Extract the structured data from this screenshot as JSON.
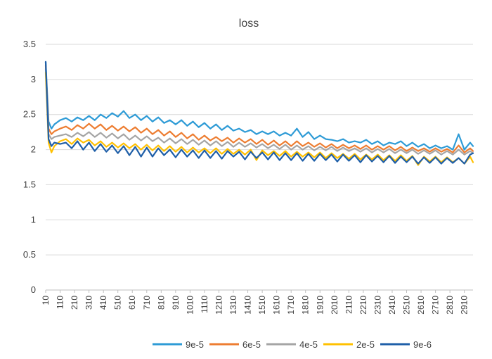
{
  "chart_data": {
    "type": "line",
    "title": "loss",
    "xlabel": "",
    "ylabel": "",
    "ylim": [
      0,
      3.5
    ],
    "yticks": [
      "0",
      "0.5",
      "1",
      "1.5",
      "2",
      "2.5",
      "3",
      "3.5"
    ],
    "xlim": [
      10,
      2970
    ],
    "xticks": [
      "10",
      "110",
      "210",
      "310",
      "410",
      "510",
      "610",
      "710",
      "810",
      "910",
      "1010",
      "1110",
      "1210",
      "1310",
      "1410",
      "1510",
      "1610",
      "1710",
      "1810",
      "1910",
      "2010",
      "2110",
      "2210",
      "2310",
      "2410",
      "2510",
      "2610",
      "2710",
      "2810",
      "2910"
    ],
    "grid": true,
    "legend_position": "bottom",
    "series": [
      {
        "name": "9e-5",
        "color": "#2E9BD6",
        "x": [
          10,
          30,
          50,
          70,
          110,
          150,
          190,
          230,
          270,
          310,
          350,
          390,
          430,
          470,
          510,
          550,
          590,
          630,
          670,
          710,
          750,
          790,
          830,
          870,
          910,
          950,
          990,
          1030,
          1070,
          1110,
          1150,
          1190,
          1230,
          1270,
          1310,
          1350,
          1390,
          1430,
          1470,
          1510,
          1550,
          1590,
          1630,
          1670,
          1710,
          1750,
          1790,
          1830,
          1870,
          1910,
          1950,
          1990,
          2030,
          2070,
          2110,
          2150,
          2190,
          2230,
          2270,
          2310,
          2350,
          2390,
          2430,
          2470,
          2510,
          2550,
          2590,
          2630,
          2670,
          2710,
          2750,
          2790,
          2830,
          2870,
          2910,
          2950,
          2970
        ],
        "y": [
          3.25,
          2.4,
          2.3,
          2.36,
          2.42,
          2.45,
          2.4,
          2.46,
          2.42,
          2.48,
          2.42,
          2.5,
          2.45,
          2.52,
          2.47,
          2.55,
          2.45,
          2.5,
          2.42,
          2.48,
          2.4,
          2.46,
          2.38,
          2.42,
          2.36,
          2.42,
          2.34,
          2.4,
          2.32,
          2.38,
          2.3,
          2.36,
          2.28,
          2.34,
          2.27,
          2.3,
          2.25,
          2.28,
          2.22,
          2.26,
          2.22,
          2.26,
          2.2,
          2.24,
          2.2,
          2.3,
          2.18,
          2.25,
          2.15,
          2.2,
          2.15,
          2.14,
          2.12,
          2.15,
          2.1,
          2.12,
          2.1,
          2.14,
          2.08,
          2.12,
          2.06,
          2.1,
          2.08,
          2.12,
          2.05,
          2.1,
          2.04,
          2.08,
          2.02,
          2.06,
          2.02,
          2.05,
          2.0,
          2.22,
          2.0,
          2.1,
          2.05
        ]
      },
      {
        "name": "6e-5",
        "color": "#ED7D31",
        "x": [
          10,
          30,
          50,
          70,
          110,
          150,
          190,
          230,
          270,
          310,
          350,
          390,
          430,
          470,
          510,
          550,
          590,
          630,
          670,
          710,
          750,
          790,
          830,
          870,
          910,
          950,
          990,
          1030,
          1070,
          1110,
          1150,
          1190,
          1230,
          1270,
          1310,
          1350,
          1390,
          1430,
          1470,
          1510,
          1550,
          1590,
          1630,
          1670,
          1710,
          1750,
          1790,
          1830,
          1870,
          1910,
          1950,
          1990,
          2030,
          2070,
          2110,
          2150,
          2190,
          2230,
          2270,
          2310,
          2350,
          2390,
          2430,
          2470,
          2510,
          2550,
          2590,
          2630,
          2670,
          2710,
          2750,
          2790,
          2830,
          2870,
          2910,
          2950,
          2970
        ],
        "y": [
          3.2,
          2.3,
          2.22,
          2.26,
          2.3,
          2.33,
          2.28,
          2.35,
          2.3,
          2.37,
          2.3,
          2.36,
          2.28,
          2.34,
          2.27,
          2.33,
          2.26,
          2.32,
          2.24,
          2.3,
          2.22,
          2.28,
          2.2,
          2.26,
          2.18,
          2.24,
          2.16,
          2.22,
          2.14,
          2.2,
          2.13,
          2.18,
          2.12,
          2.17,
          2.1,
          2.16,
          2.1,
          2.15,
          2.08,
          2.14,
          2.07,
          2.13,
          2.06,
          2.12,
          2.05,
          2.12,
          2.05,
          2.1,
          2.04,
          2.09,
          2.03,
          2.08,
          2.02,
          2.07,
          2.02,
          2.06,
          2.01,
          2.06,
          2.0,
          2.05,
          2.0,
          2.05,
          1.99,
          2.04,
          1.98,
          2.03,
          1.98,
          2.02,
          1.97,
          2.02,
          1.97,
          2.01,
          1.96,
          2.06,
          1.96,
          2.02,
          1.98
        ]
      },
      {
        "name": "4e-5",
        "color": "#A5A5A5",
        "x": [
          10,
          30,
          50,
          70,
          110,
          150,
          190,
          230,
          270,
          310,
          350,
          390,
          430,
          470,
          510,
          550,
          590,
          630,
          670,
          710,
          750,
          790,
          830,
          870,
          910,
          950,
          990,
          1030,
          1070,
          1110,
          1150,
          1190,
          1230,
          1270,
          1310,
          1350,
          1390,
          1430,
          1470,
          1510,
          1550,
          1590,
          1630,
          1670,
          1710,
          1750,
          1790,
          1830,
          1870,
          1910,
          1950,
          1990,
          2030,
          2070,
          2110,
          2150,
          2190,
          2230,
          2270,
          2310,
          2350,
          2390,
          2430,
          2470,
          2510,
          2550,
          2590,
          2630,
          2670,
          2710,
          2750,
          2790,
          2830,
          2870,
          2910,
          2950,
          2970
        ],
        "y": [
          3.15,
          2.22,
          2.15,
          2.18,
          2.2,
          2.22,
          2.18,
          2.24,
          2.19,
          2.25,
          2.18,
          2.24,
          2.17,
          2.23,
          2.16,
          2.22,
          2.14,
          2.2,
          2.13,
          2.19,
          2.12,
          2.17,
          2.1,
          2.16,
          2.09,
          2.15,
          2.08,
          2.14,
          2.07,
          2.13,
          2.06,
          2.12,
          2.05,
          2.11,
          2.04,
          2.1,
          2.04,
          2.09,
          2.03,
          2.08,
          2.02,
          2.07,
          2.01,
          2.07,
          2.0,
          2.06,
          2.0,
          2.05,
          1.99,
          2.04,
          1.99,
          2.04,
          1.98,
          2.03,
          1.98,
          2.02,
          1.97,
          2.02,
          1.96,
          2.01,
          1.96,
          2.01,
          1.95,
          2.0,
          1.95,
          2.0,
          1.94,
          1.99,
          1.94,
          1.99,
          1.93,
          1.98,
          1.93,
          2.0,
          1.93,
          1.98,
          1.95
        ]
      },
      {
        "name": "2e-5",
        "color": "#FFC000",
        "x": [
          10,
          30,
          50,
          70,
          110,
          150,
          190,
          230,
          270,
          310,
          350,
          390,
          430,
          470,
          510,
          550,
          590,
          630,
          670,
          710,
          750,
          790,
          830,
          870,
          910,
          950,
          990,
          1030,
          1070,
          1110,
          1150,
          1190,
          1230,
          1270,
          1310,
          1350,
          1390,
          1430,
          1470,
          1510,
          1550,
          1590,
          1630,
          1670,
          1710,
          1750,
          1790,
          1830,
          1870,
          1910,
          1950,
          1990,
          2030,
          2070,
          2110,
          2150,
          2190,
          2230,
          2270,
          2310,
          2350,
          2390,
          2430,
          2470,
          2510,
          2550,
          2590,
          2630,
          2670,
          2710,
          2750,
          2790,
          2830,
          2870,
          2910,
          2950,
          2970
        ],
        "y": [
          3.1,
          2.1,
          1.96,
          2.05,
          2.12,
          2.15,
          2.08,
          2.16,
          2.1,
          2.14,
          2.06,
          2.12,
          2.04,
          2.1,
          2.03,
          2.09,
          2.02,
          2.08,
          2.0,
          2.07,
          1.99,
          2.06,
          1.98,
          2.05,
          1.97,
          2.04,
          1.96,
          2.03,
          1.96,
          2.02,
          1.95,
          2.02,
          1.94,
          2.01,
          1.94,
          2.0,
          1.93,
          2.0,
          1.85,
          1.99,
          1.92,
          1.98,
          1.91,
          1.98,
          1.9,
          1.97,
          1.9,
          1.96,
          1.89,
          1.96,
          1.88,
          1.95,
          1.88,
          1.94,
          1.87,
          1.94,
          1.86,
          1.93,
          1.86,
          1.93,
          1.85,
          1.92,
          1.84,
          1.92,
          1.84,
          1.91,
          1.78,
          1.9,
          1.83,
          1.9,
          1.82,
          1.89,
          1.82,
          1.88,
          1.8,
          1.9,
          1.82
        ]
      },
      {
        "name": "9e-6",
        "color": "#1F5FA8",
        "x": [
          10,
          30,
          50,
          70,
          110,
          150,
          190,
          230,
          270,
          310,
          350,
          390,
          430,
          470,
          510,
          550,
          590,
          630,
          670,
          710,
          750,
          790,
          830,
          870,
          910,
          950,
          990,
          1030,
          1070,
          1110,
          1150,
          1190,
          1230,
          1270,
          1310,
          1350,
          1390,
          1430,
          1470,
          1510,
          1550,
          1590,
          1630,
          1670,
          1710,
          1750,
          1790,
          1830,
          1870,
          1910,
          1950,
          1990,
          2030,
          2070,
          2110,
          2150,
          2190,
          2230,
          2270,
          2310,
          2350,
          2390,
          2430,
          2470,
          2510,
          2550,
          2590,
          2630,
          2670,
          2710,
          2750,
          2790,
          2830,
          2870,
          2910,
          2950,
          2970
        ],
        "y": [
          3.25,
          2.15,
          2.05,
          2.1,
          2.08,
          2.1,
          2.02,
          2.12,
          2.0,
          2.1,
          1.98,
          2.08,
          1.97,
          2.06,
          1.95,
          2.05,
          1.92,
          2.04,
          1.9,
          2.03,
          1.9,
          2.02,
          1.92,
          2.0,
          1.89,
          2.0,
          1.9,
          1.99,
          1.88,
          1.99,
          1.88,
          1.98,
          1.87,
          1.98,
          1.9,
          1.97,
          1.86,
          1.97,
          1.88,
          1.96,
          1.86,
          1.96,
          1.85,
          1.95,
          1.85,
          1.95,
          1.84,
          1.94,
          1.84,
          1.94,
          1.85,
          1.93,
          1.83,
          1.93,
          1.84,
          1.92,
          1.82,
          1.92,
          1.83,
          1.91,
          1.82,
          1.91,
          1.81,
          1.9,
          1.82,
          1.9,
          1.8,
          1.89,
          1.81,
          1.89,
          1.8,
          1.88,
          1.81,
          1.88,
          1.8,
          1.93,
          1.95
        ]
      }
    ]
  }
}
